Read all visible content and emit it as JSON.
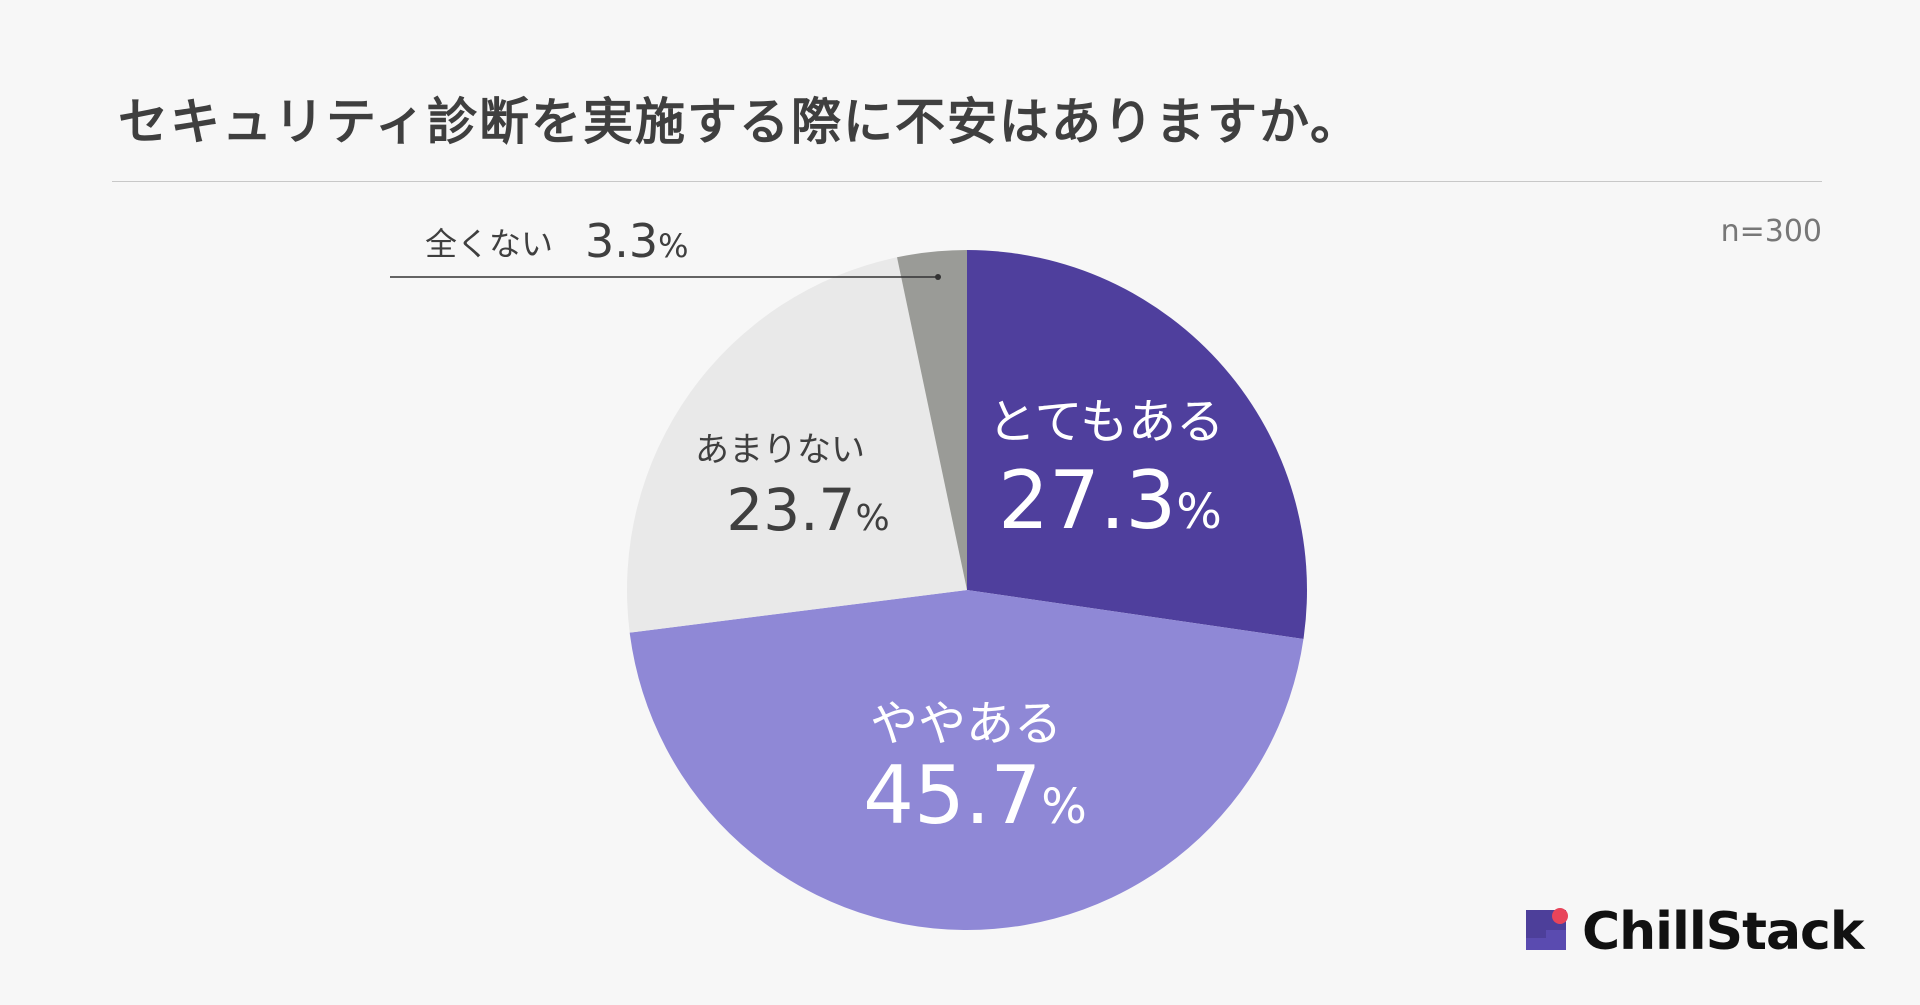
{
  "title": "セキュリティ診断を実施する際に不安はありますか。",
  "sample_size": "n=300",
  "brand": {
    "name": "ChillStack",
    "icon": "chillstack-logo-icon",
    "color": "#4d3f9a",
    "accent": "#e8445a"
  },
  "chart_data": {
    "type": "pie",
    "title": "セキュリティ診断を実施する際に不安はありますか。",
    "start_angle_deg": 0,
    "direction": "clockwise",
    "legend": "none",
    "slices": [
      {
        "label": "とてもある",
        "value": 27.3,
        "value_text": "27.3",
        "unit": "%",
        "color": "#4f3f9d",
        "text_color": "#ffffff"
      },
      {
        "label": "ややある",
        "value": 45.7,
        "value_text": "45.7",
        "unit": "%",
        "color": "#8f88d6",
        "text_color": "#ffffff"
      },
      {
        "label": "あまりない",
        "value": 23.7,
        "value_text": "23.7",
        "unit": "%",
        "color": "#e9e9e9",
        "text_color": "#3f3f3f"
      },
      {
        "label": "全くない",
        "value": 3.3,
        "value_text": "3.3",
        "unit": "%",
        "color": "#9a9b97",
        "text_color": "#3f3f3f"
      }
    ]
  }
}
